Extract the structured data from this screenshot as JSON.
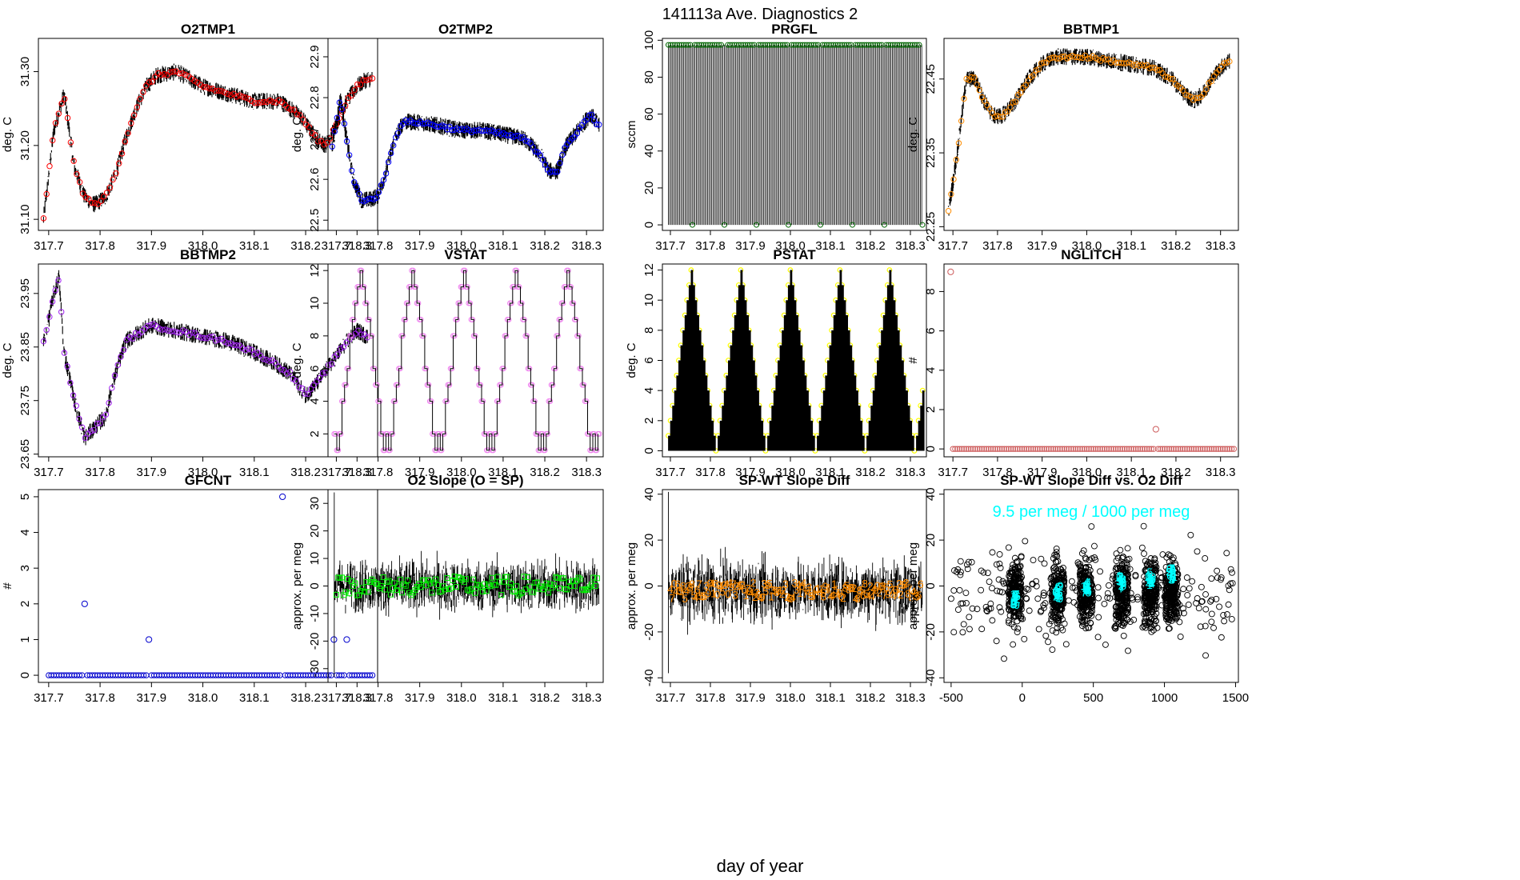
{
  "figure": {
    "title": "141113a   Ave. Diagnostics 2",
    "xlabel": "day of year"
  },
  "chart_data": [
    {
      "type": "line",
      "title": "O2TMP1",
      "ylabel": "deg. C",
      "color": "#ff0000",
      "xlim": [
        317.68,
        318.34
      ],
      "ylim": [
        31.085,
        31.345
      ],
      "xticks": [
        "317.7",
        "317.8",
        "317.9",
        "318.0",
        "318.1",
        "318.2",
        "318.3"
      ],
      "yticks": [
        "31.10",
        "31.20",
        "31.30"
      ],
      "x": [
        317.69,
        317.71,
        317.73,
        317.75,
        317.77,
        317.79,
        317.81,
        317.83,
        317.85,
        317.87,
        317.89,
        317.91,
        317.95,
        318.0,
        318.05,
        318.1,
        318.15,
        318.19,
        318.22,
        318.24,
        318.26,
        318.28,
        318.3,
        318.32,
        318.33
      ],
      "y": [
        31.1,
        31.22,
        31.27,
        31.17,
        31.13,
        31.12,
        31.13,
        31.16,
        31.21,
        31.25,
        31.28,
        31.295,
        31.3,
        31.28,
        31.27,
        31.26,
        31.26,
        31.24,
        31.21,
        31.2,
        31.23,
        31.26,
        31.28,
        31.29,
        31.29
      ]
    },
    {
      "type": "line",
      "title": "O2TMP2",
      "ylabel": "deg. C",
      "color": "#0000ff",
      "xlim": [
        317.68,
        318.34
      ],
      "ylim": [
        22.475,
        22.945
      ],
      "xticks": [
        "317.7",
        "317.8",
        "317.9",
        "318.0",
        "318.1",
        "318.2",
        "318.3"
      ],
      "yticks": [
        "22.5",
        "22.6",
        "22.7",
        "22.8",
        "22.9"
      ],
      "x": [
        317.69,
        317.71,
        317.72,
        317.74,
        317.76,
        317.78,
        317.8,
        317.82,
        317.84,
        317.86,
        317.88,
        317.9,
        317.95,
        318.0,
        318.05,
        318.1,
        318.15,
        318.19,
        318.21,
        318.23,
        318.25,
        318.28,
        318.31,
        318.33
      ],
      "y": [
        22.68,
        22.8,
        22.73,
        22.6,
        22.55,
        22.55,
        22.56,
        22.62,
        22.7,
        22.74,
        22.74,
        22.74,
        22.73,
        22.72,
        22.72,
        22.71,
        22.7,
        22.66,
        22.62,
        22.62,
        22.68,
        22.72,
        22.76,
        22.73
      ]
    },
    {
      "type": "spikes",
      "title": "PRGFL",
      "ylabel": "sccm",
      "color": "#006400",
      "xlim": [
        317.68,
        318.34
      ],
      "ylim": [
        -3,
        101
      ],
      "xticks": [
        "317.7",
        "317.8",
        "317.9",
        "318.0",
        "318.1",
        "318.2",
        "318.3"
      ],
      "yticks": [
        "0",
        "20",
        "40",
        "60",
        "80",
        "100"
      ],
      "high": 97.5,
      "low": 0,
      "low_points": [
        317.755,
        317.835,
        317.915,
        317.995,
        318.075,
        318.155,
        318.235,
        318.33
      ]
    },
    {
      "type": "line",
      "title": "BBTMP1",
      "ylabel": "deg. C",
      "color": "#ff8c00",
      "xlim": [
        317.68,
        318.34
      ],
      "ylim": [
        22.245,
        22.505
      ],
      "xticks": [
        "317.7",
        "317.8",
        "317.9",
        "318.0",
        "318.1",
        "318.2",
        "318.3"
      ],
      "yticks": [
        "22.25",
        "22.35",
        "22.45"
      ],
      "x": [
        317.69,
        317.71,
        317.73,
        317.75,
        317.77,
        317.79,
        317.81,
        317.84,
        317.87,
        317.9,
        317.93,
        317.95,
        318.0,
        318.05,
        318.1,
        318.15,
        318.19,
        318.22,
        318.24,
        318.26,
        318.28,
        318.3,
        318.32
      ],
      "y": [
        22.27,
        22.35,
        22.45,
        22.45,
        22.42,
        22.4,
        22.4,
        22.42,
        22.45,
        22.47,
        22.48,
        22.48,
        22.48,
        22.475,
        22.47,
        22.465,
        22.45,
        22.43,
        22.42,
        22.43,
        22.45,
        22.465,
        22.475
      ]
    },
    {
      "type": "line",
      "title": "BBTMP2",
      "ylabel": "deg. C",
      "color": "#a020f0",
      "xlim": [
        317.68,
        318.34
      ],
      "ylim": [
        23.645,
        24.005
      ],
      "xticks": [
        "317.7",
        "317.8",
        "317.9",
        "318.0",
        "318.1",
        "318.2",
        "318.3"
      ],
      "yticks": [
        "23.65",
        "23.75",
        "23.85",
        "23.95"
      ],
      "x": [
        317.69,
        317.7,
        317.71,
        317.72,
        317.73,
        317.75,
        317.77,
        317.79,
        317.81,
        317.83,
        317.85,
        317.88,
        317.9,
        317.95,
        318.0,
        318.05,
        318.1,
        318.14,
        318.17,
        318.2,
        318.22,
        318.25,
        318.28,
        318.3,
        318.32
      ],
      "y": [
        23.86,
        23.9,
        23.95,
        23.98,
        23.84,
        23.75,
        23.68,
        23.7,
        23.72,
        23.8,
        23.86,
        23.88,
        23.89,
        23.88,
        23.87,
        23.86,
        23.84,
        23.82,
        23.8,
        23.76,
        23.78,
        23.82,
        23.86,
        23.88,
        23.87
      ]
    },
    {
      "type": "step",
      "title": "VSTAT",
      "ylabel": "deg. C",
      "color": "#ee82ee",
      "xlim": [
        317.68,
        318.34
      ],
      "ylim": [
        0.6,
        12.4
      ],
      "xticks": [
        "317.7",
        "317.8",
        "317.9",
        "318.0",
        "318.1",
        "318.2",
        "318.3"
      ],
      "yticks": [
        "2",
        "4",
        "6",
        "8",
        "10",
        "12"
      ],
      "x0": 317.695,
      "period": 0.124,
      "pattern": [
        2,
        1,
        2,
        4,
        5,
        6,
        8,
        9,
        10,
        11,
        12,
        11,
        10,
        9,
        8,
        6,
        5,
        4,
        2,
        1
      ]
    },
    {
      "type": "spikes",
      "title": "PSTAT",
      "ylabel": "deg. C",
      "color": "#ffff00",
      "xlim": [
        317.68,
        318.34
      ],
      "ylim": [
        -0.4,
        12.4
      ],
      "xticks": [
        "317.7",
        "317.8",
        "317.9",
        "318.0",
        "318.1",
        "318.2",
        "318.3"
      ],
      "yticks": [
        "0",
        "2",
        "4",
        "6",
        "8",
        "10",
        "12"
      ],
      "x0": 317.695,
      "period": 0.124,
      "pattern": [
        1,
        2,
        3,
        4,
        5,
        6,
        7,
        8,
        9,
        10,
        11,
        12,
        11,
        10,
        9,
        8,
        7,
        6,
        5,
        4,
        3,
        2,
        1,
        0
      ]
    },
    {
      "type": "scatter",
      "title": "NGLITCH",
      "ylabel": "#",
      "color": "#cd5c5c",
      "xlim": [
        317.68,
        318.34
      ],
      "ylim": [
        -0.4,
        9.4
      ],
      "xticks": [
        "317.7",
        "317.8",
        "317.9",
        "318.0",
        "318.1",
        "318.2",
        "318.3"
      ],
      "yticks": [
        "0",
        "2",
        "4",
        "6",
        "8"
      ],
      "base_value": 0,
      "x_start": 317.7,
      "x_end": 318.33,
      "points": [
        {
          "x": 317.695,
          "y": 9
        },
        {
          "x": 318.155,
          "y": 1
        }
      ]
    },
    {
      "type": "scatter",
      "title": "GFCNT",
      "ylabel": "#",
      "color": "#0000cd",
      "xlim": [
        317.68,
        318.34
      ],
      "ylim": [
        -0.2,
        5.2
      ],
      "xticks": [
        "317.7",
        "317.8",
        "317.9",
        "318.0",
        "318.1",
        "318.2",
        "318.3"
      ],
      "yticks": [
        "0",
        "1",
        "2",
        "3",
        "4",
        "5"
      ],
      "base_value": 0,
      "x_start": 317.7,
      "x_end": 318.33,
      "points": [
        {
          "x": 317.77,
          "y": 2
        },
        {
          "x": 317.895,
          "y": 1
        },
        {
          "x": 318.155,
          "y": 5
        },
        {
          "x": 318.255,
          "y": 1
        },
        {
          "x": 318.28,
          "y": 1
        }
      ]
    },
    {
      "type": "noise",
      "title": "O2 Slope (O = SP)",
      "ylabel": "approx. per meg",
      "color": "#00ee00",
      "xlim": [
        317.68,
        318.34
      ],
      "ylim": [
        -35,
        35
      ],
      "xticks": [
        "317.7",
        "317.8",
        "317.9",
        "318.0",
        "318.1",
        "318.2",
        "318.3"
      ],
      "yticks": [
        "-30",
        "-20",
        "-10",
        "0",
        "10",
        "20",
        "30"
      ],
      "band": [
        -8,
        9
      ],
      "center": 0,
      "spike": [
        -33,
        34
      ],
      "marker": "□"
    },
    {
      "type": "noise",
      "title": "SP-WT Slope Diff",
      "ylabel": "approx. per meg",
      "color": "#ff8c00",
      "xlim": [
        317.68,
        318.34
      ],
      "ylim": [
        -42,
        42
      ],
      "xticks": [
        "317.7",
        "317.8",
        "317.9",
        "318.0",
        "318.1",
        "318.2",
        "318.3"
      ],
      "yticks": [
        "-40",
        "-20",
        "0",
        "20",
        "40"
      ],
      "band": [
        -12,
        12
      ],
      "center": -2,
      "spike": [
        -38,
        41
      ],
      "marker": "digits"
    },
    {
      "type": "scatter",
      "title": "SP-WT Slope Diff vs. O2 Diff",
      "ylabel": "approx. per meg",
      "color": "#000000",
      "xlim": [
        -550,
        1520
      ],
      "ylim": [
        -42,
        42
      ],
      "xticks": [
        "-500",
        "0",
        "500",
        "1000",
        "1500"
      ],
      "yticks": [
        "-40",
        "-20",
        "0",
        "20",
        "40"
      ],
      "annotation": "9.5 per meg / 1000 per meg",
      "annotation_color": "#00ffff",
      "clusters": [
        -50,
        250,
        450,
        700,
        900,
        1050
      ]
    }
  ]
}
